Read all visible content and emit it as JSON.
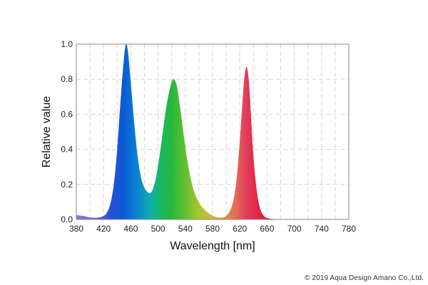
{
  "chart_data": {
    "type": "area",
    "xlabel": "Wavelength [nm]",
    "ylabel": "Relative value",
    "xlim": [
      380,
      780
    ],
    "ylim": [
      0,
      1.0
    ],
    "x_ticks": [
      380,
      420,
      460,
      500,
      540,
      580,
      620,
      660,
      700,
      740,
      780
    ],
    "y_ticks": [
      "0.0",
      "0.2",
      "0.4",
      "0.6",
      "0.8",
      "1.0"
    ],
    "grid": true,
    "fill": "wavelength-spectrum-gradient",
    "series": [
      {
        "x": [
          380,
          390,
          400,
          410,
          420,
          425,
          430,
          435,
          440,
          445,
          450,
          453,
          456,
          460,
          465,
          470,
          475,
          480,
          485,
          488,
          492,
          497,
          502,
          507,
          512,
          517,
          522,
          527,
          532,
          537,
          542,
          547,
          552,
          557,
          562,
          567,
          572,
          577,
          582,
          587,
          592,
          596,
          600,
          605,
          610,
          615,
          620,
          624,
          627,
          630,
          633,
          636,
          640,
          645,
          650,
          655,
          660,
          670,
          680,
          700,
          740,
          780
        ],
        "y": [
          0.025,
          0.02,
          0.012,
          0.01,
          0.02,
          0.04,
          0.09,
          0.2,
          0.4,
          0.68,
          0.92,
          1.0,
          0.95,
          0.78,
          0.55,
          0.36,
          0.24,
          0.18,
          0.155,
          0.15,
          0.17,
          0.24,
          0.36,
          0.5,
          0.64,
          0.74,
          0.8,
          0.77,
          0.65,
          0.5,
          0.36,
          0.25,
          0.17,
          0.12,
          0.085,
          0.06,
          0.042,
          0.028,
          0.018,
          0.012,
          0.01,
          0.012,
          0.02,
          0.045,
          0.1,
          0.22,
          0.45,
          0.68,
          0.82,
          0.87,
          0.8,
          0.62,
          0.36,
          0.16,
          0.06,
          0.022,
          0.008,
          0.002,
          0.0,
          0.0,
          0.0,
          0.0
        ]
      }
    ]
  },
  "footer": {
    "copyright": "© 2019 Aqua Design Amano Co.,Ltd."
  }
}
